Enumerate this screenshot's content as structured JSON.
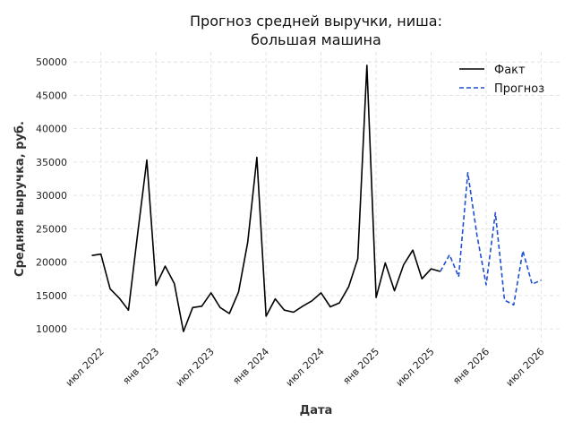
{
  "chart_data": {
    "type": "line",
    "title_lines": [
      "Прогноз средней выручки, ниша:",
      "большая машина"
    ],
    "xlabel": "Дата",
    "ylabel": "Средняя выручка, руб.",
    "x_start": "2022-06",
    "x_range": [
      "2022-04",
      "2026-09"
    ],
    "ylim": [
      8000,
      51500
    ],
    "y_ticks": [
      10000,
      15000,
      20000,
      25000,
      30000,
      35000,
      40000,
      45000,
      50000
    ],
    "x_ticks": [
      {
        "month": "2022-07",
        "label": "июл 2022"
      },
      {
        "month": "2023-01",
        "label": "янв 2023"
      },
      {
        "month": "2023-07",
        "label": "июл 2023"
      },
      {
        "month": "2024-01",
        "label": "янв 2024"
      },
      {
        "month": "2024-07",
        "label": "июл 2024"
      },
      {
        "month": "2025-01",
        "label": "янв 2025"
      },
      {
        "month": "2025-07",
        "label": "июл 2025"
      },
      {
        "month": "2026-01",
        "label": "янв 2026"
      },
      {
        "month": "2026-07",
        "label": "июл 2026"
      }
    ],
    "grid": true,
    "legend_position": "top-right",
    "series": [
      {
        "name": "Факт",
        "color": "#000000",
        "style": "solid",
        "points": [
          {
            "x": "2022-06",
            "y": 21000
          },
          {
            "x": "2022-07",
            "y": 21200
          },
          {
            "x": "2022-08",
            "y": 16000
          },
          {
            "x": "2022-09",
            "y": 14600
          },
          {
            "x": "2022-10",
            "y": 12800
          },
          {
            "x": "2022-11",
            "y": 24200
          },
          {
            "x": "2022-12",
            "y": 35300
          },
          {
            "x": "2023-01",
            "y": 16500
          },
          {
            "x": "2023-02",
            "y": 19400
          },
          {
            "x": "2023-03",
            "y": 16800
          },
          {
            "x": "2023-04",
            "y": 9600
          },
          {
            "x": "2023-05",
            "y": 13200
          },
          {
            "x": "2023-06",
            "y": 13400
          },
          {
            "x": "2023-07",
            "y": 15400
          },
          {
            "x": "2023-08",
            "y": 13200
          },
          {
            "x": "2023-09",
            "y": 12300
          },
          {
            "x": "2023-10",
            "y": 15500
          },
          {
            "x": "2023-11",
            "y": 23000
          },
          {
            "x": "2023-12",
            "y": 35700
          },
          {
            "x": "2024-01",
            "y": 11900
          },
          {
            "x": "2024-02",
            "y": 14500
          },
          {
            "x": "2024-03",
            "y": 12800
          },
          {
            "x": "2024-04",
            "y": 12500
          },
          {
            "x": "2024-05",
            "y": 13400
          },
          {
            "x": "2024-06",
            "y": 14200
          },
          {
            "x": "2024-07",
            "y": 15400
          },
          {
            "x": "2024-08",
            "y": 13300
          },
          {
            "x": "2024-09",
            "y": 13900
          },
          {
            "x": "2024-10",
            "y": 16300
          },
          {
            "x": "2024-11",
            "y": 20500
          },
          {
            "x": "2024-12",
            "y": 49500
          },
          {
            "x": "2025-01",
            "y": 14700
          },
          {
            "x": "2025-02",
            "y": 19900
          },
          {
            "x": "2025-03",
            "y": 15700
          },
          {
            "x": "2025-04",
            "y": 19600
          },
          {
            "x": "2025-05",
            "y": 21800
          },
          {
            "x": "2025-06",
            "y": 17500
          },
          {
            "x": "2025-07",
            "y": 19000
          },
          {
            "x": "2025-08",
            "y": 18600
          }
        ]
      },
      {
        "name": "Прогноз",
        "color": "#1f4fd1",
        "style": "dashed",
        "points": [
          {
            "x": "2025-08",
            "y": 18600
          },
          {
            "x": "2025-09",
            "y": 21100
          },
          {
            "x": "2025-10",
            "y": 17800
          },
          {
            "x": "2025-11",
            "y": 33400
          },
          {
            "x": "2025-12",
            "y": 24000
          },
          {
            "x": "2026-01",
            "y": 16600
          },
          {
            "x": "2026-02",
            "y": 27400
          },
          {
            "x": "2026-03",
            "y": 14300
          },
          {
            "x": "2026-04",
            "y": 13600
          },
          {
            "x": "2026-05",
            "y": 21700
          },
          {
            "x": "2026-06",
            "y": 16700
          },
          {
            "x": "2026-07",
            "y": 17300
          }
        ]
      }
    ]
  }
}
